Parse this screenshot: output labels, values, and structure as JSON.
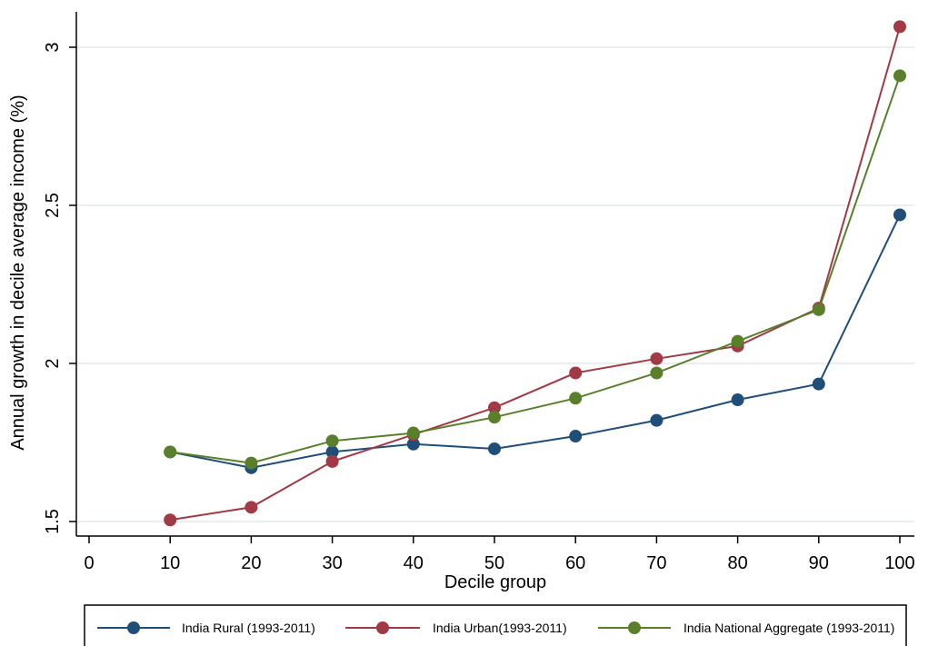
{
  "chart_data": {
    "type": "line",
    "title": "",
    "xlabel": "Decile group",
    "ylabel": "Annual growth in decile average income (%)",
    "x": [
      10,
      20,
      30,
      40,
      50,
      60,
      70,
      80,
      90,
      100
    ],
    "xlim": [
      0,
      100
    ],
    "ylim": [
      1.5,
      3.0
    ],
    "xticks": [
      0,
      10,
      20,
      30,
      40,
      50,
      60,
      70,
      80,
      90,
      100
    ],
    "xtick_labels": [
      "0",
      "10",
      "20",
      "30",
      "40",
      "50",
      "60",
      "70",
      "80",
      "90",
      "100"
    ],
    "yticks": [
      1.5,
      2,
      2.5,
      3
    ],
    "ytick_labels": [
      "1.5",
      "2",
      "2.5",
      "3"
    ],
    "grid": "horizontal",
    "legend_position": "bottom",
    "series": [
      {
        "name": "India Rural (1993-2011)",
        "color": "#1f4e79",
        "values": [
          1.72,
          1.67,
          1.72,
          1.745,
          1.73,
          1.77,
          1.82,
          1.885,
          1.935,
          2.47
        ]
      },
      {
        "name": "India Urban(1993-2011)",
        "color": "#a13a45",
        "values": [
          1.505,
          1.545,
          1.69,
          1.775,
          1.86,
          1.97,
          2.015,
          2.055,
          2.175,
          3.065
        ]
      },
      {
        "name": "India National Aggregate (1993-2011)",
        "color": "#5a7f2b",
        "values": [
          1.72,
          1.685,
          1.755,
          1.78,
          1.83,
          1.89,
          1.97,
          2.07,
          2.17,
          2.91
        ]
      }
    ]
  }
}
